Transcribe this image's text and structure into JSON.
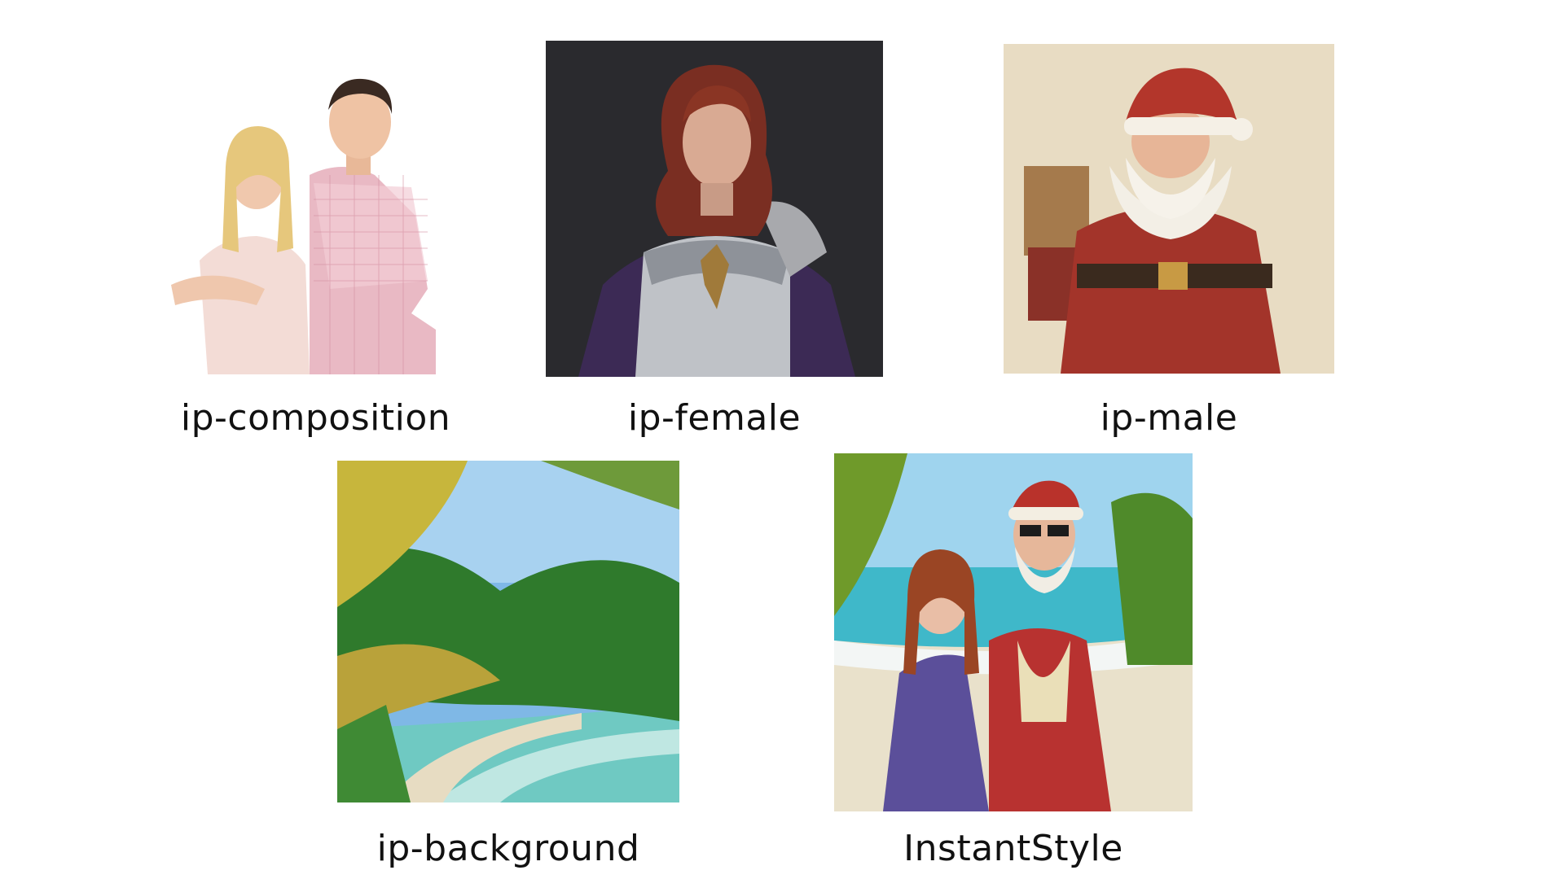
{
  "captions": {
    "composition": "ip-composition",
    "female": "ip-female",
    "male": "ip-male",
    "background": "ip-background",
    "result": "InstantStyle"
  },
  "colors": {
    "background": "#ffffff",
    "text": "#111111"
  }
}
